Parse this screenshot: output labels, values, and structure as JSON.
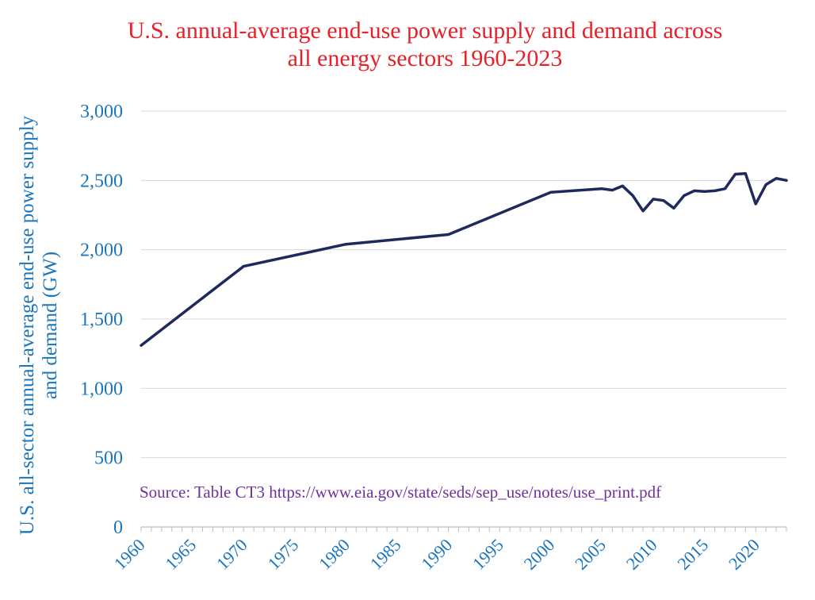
{
  "chart_data": {
    "type": "line",
    "title_lines": [
      "U.S. annual-average end-use power supply and demand across",
      "all energy sectors 1960-2023"
    ],
    "ylabel_lines": [
      "U.S. all-sector annual-average end-use power supply",
      "and demand (GW)"
    ],
    "xlabel": "",
    "annotation": "Source: Table CT3  https://www.eia.gov/state/seds/sep_use/notes/use_print.pdf",
    "xlim": [
      1960,
      2023
    ],
    "ylim": [
      0,
      3000
    ],
    "y_ticks": [
      0,
      500,
      1000,
      1500,
      2000,
      2500,
      3000
    ],
    "y_tick_labels": [
      "0",
      "500",
      "1,000",
      "1,500",
      "2,000",
      "2,500",
      "3,000"
    ],
    "x_ticks": [
      1960,
      1965,
      1970,
      1975,
      1980,
      1985,
      1990,
      1995,
      2000,
      2005,
      2010,
      2015,
      2020
    ],
    "x_tick_labels": [
      "1960",
      "1965",
      "1970",
      "1975",
      "1980",
      "1985",
      "1990",
      "1995",
      "2000",
      "2005",
      "2010",
      "2015",
      "2020"
    ],
    "grid": true,
    "legend": "none",
    "series": [
      {
        "color": "#1f2a5c",
        "x": [
          1960,
          1970,
          1980,
          1990,
          2000,
          2005,
          2006,
          2007,
          2008,
          2009,
          2010,
          2011,
          2012,
          2013,
          2014,
          2015,
          2016,
          2017,
          2018,
          2019,
          2020,
          2021,
          2022,
          2023
        ],
        "y": [
          1310,
          1880,
          2040,
          2110,
          2415,
          2440,
          2430,
          2460,
          2390,
          2280,
          2365,
          2355,
          2300,
          2390,
          2425,
          2420,
          2425,
          2440,
          2545,
          2550,
          2330,
          2470,
          2515,
          2500
        ]
      }
    ]
  },
  "colors": {
    "title": "#e8202a",
    "axis_text": "#1b75bb",
    "annotation": "#7030a0",
    "gridline": "#d9d9d9",
    "axis_line": "#bfbfbf"
  }
}
